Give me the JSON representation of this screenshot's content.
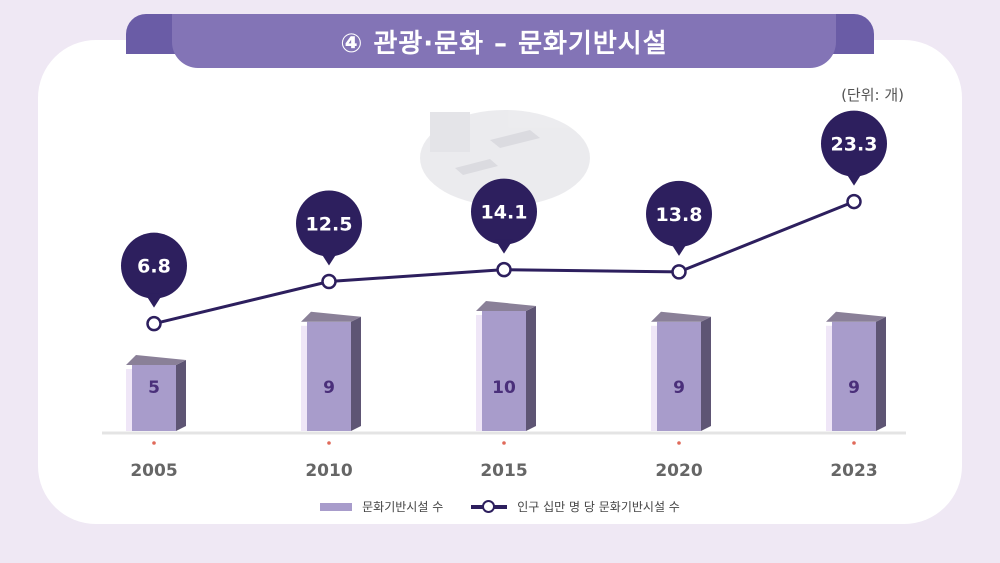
{
  "title": "④ 관광·문화 – 문화기반시설",
  "unit_label": "(단위: 개)",
  "colors": {
    "banner": "#8374b6",
    "bar_front": "#a89ccb",
    "bar_dark": "#5e5574",
    "line": "#2d1f5e",
    "bubble": "#2d1f5e"
  },
  "chart_data": {
    "type": "bar",
    "categories": [
      "2005",
      "2010",
      "2015",
      "2020",
      "2023"
    ],
    "series": [
      {
        "name": "문화기반시설 수",
        "type": "bar",
        "values": [
          5,
          9,
          10,
          9,
          9
        ]
      },
      {
        "name": "인구 십만 명 당 문화기반시설 수",
        "type": "line",
        "values": [
          6.8,
          12.5,
          14.1,
          13.8,
          23.3
        ]
      }
    ],
    "legend_position": "bottom",
    "grid": false
  }
}
